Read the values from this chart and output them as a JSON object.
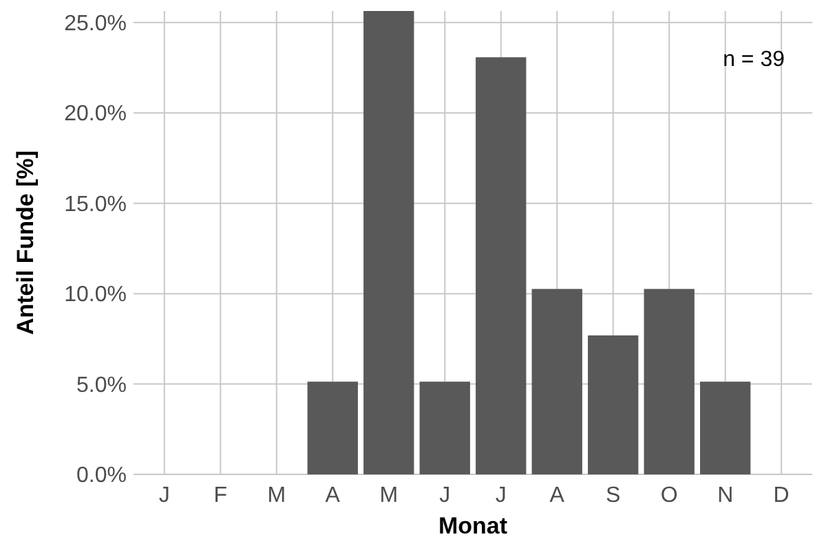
{
  "chart_data": {
    "type": "bar",
    "xlabel": "Monat",
    "ylabel": "Anteil Funde [%]",
    "categories": [
      "J",
      "F",
      "M",
      "A",
      "M",
      "J",
      "J",
      "A",
      "S",
      "O",
      "N",
      "D"
    ],
    "values": [
      0,
      0,
      0,
      5.13,
      25.64,
      5.13,
      23.08,
      10.26,
      7.69,
      10.26,
      5.13,
      0
    ],
    "color": "#595959",
    "ylim": [
      0,
      25.64
    ],
    "yticks": [
      {
        "value": 0,
        "label": "0.0%"
      },
      {
        "value": 5,
        "label": "5.0%"
      },
      {
        "value": 10,
        "label": "10.0%"
      },
      {
        "value": 15,
        "label": "15.0%"
      },
      {
        "value": 20,
        "label": "20.0%"
      },
      {
        "value": 25,
        "label": "25.0%"
      }
    ],
    "grid": true,
    "annotations": [
      "n = 39"
    ]
  }
}
